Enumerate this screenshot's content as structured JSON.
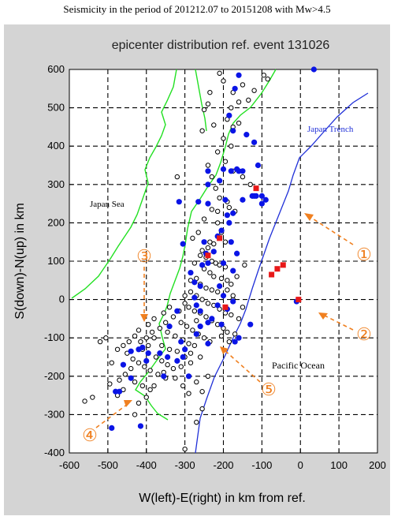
{
  "caption": "Seismicity in the period of 201212.07 to 20151208 with Mw>4.5",
  "chart_data": {
    "type": "scatter",
    "title": "epicenter distribution ref. event 131026",
    "xlabel": "W(left)-E(right) in km from ref.",
    "ylabel": "S(down)-N(up) in km",
    "xlim": [
      -600,
      200
    ],
    "ylim": [
      -400,
      600
    ],
    "xticks": [
      "-600",
      "-500",
      "-400",
      "-300",
      "-200",
      "-100",
      "0",
      "100",
      "200"
    ],
    "yticks": [
      "-400",
      "-300",
      "-200",
      "-100",
      "0",
      "100",
      "200",
      "300",
      "400",
      "500",
      "600"
    ],
    "grid": true,
    "colors": {
      "open": "#000000",
      "blue": "#0a14e6",
      "red": "#e81818",
      "coast": "#22e022",
      "trench": "#2030d8",
      "annot": "#f08020"
    },
    "series": [
      {
        "marker": "open-circle",
        "points": [
          [
            -210,
            590
          ],
          [
            -200,
            570
          ],
          [
            -175,
            540
          ],
          [
            -160,
            515
          ],
          [
            -150,
            560
          ],
          [
            -135,
            520
          ],
          [
            -120,
            545
          ],
          [
            -95,
            585
          ],
          [
            -85,
            575
          ],
          [
            -180,
            500
          ],
          [
            -190,
            470
          ],
          [
            -175,
            450
          ],
          [
            -160,
            460
          ],
          [
            -240,
            510
          ],
          [
            -235,
            540
          ],
          [
            -250,
            495
          ],
          [
            -225,
            455
          ],
          [
            -255,
            440
          ],
          [
            -200,
            420
          ],
          [
            -180,
            400
          ],
          [
            -215,
            385
          ],
          [
            -195,
            360
          ],
          [
            -175,
            335
          ],
          [
            -150,
            320
          ],
          [
            -130,
            300
          ],
          [
            -240,
            350
          ],
          [
            -230,
            320
          ],
          [
            -220,
            290
          ],
          [
            -210,
            265
          ],
          [
            -190,
            255
          ],
          [
            -185,
            240
          ],
          [
            -230,
            235
          ],
          [
            -250,
            210
          ],
          [
            -215,
            200
          ],
          [
            -205,
            175
          ],
          [
            -195,
            150
          ],
          [
            -225,
            145
          ],
          [
            -235,
            150
          ],
          [
            -240,
            135
          ],
          [
            -255,
            128
          ],
          [
            -260,
            115
          ],
          [
            -245,
            110
          ],
          [
            -230,
            100
          ],
          [
            -220,
            95
          ],
          [
            -210,
            90
          ],
          [
            -195,
            85
          ],
          [
            -275,
            95
          ],
          [
            -250,
            80
          ],
          [
            -235,
            70
          ],
          [
            -225,
            60
          ],
          [
            -205,
            55
          ],
          [
            -190,
            50
          ],
          [
            -180,
            40
          ],
          [
            -270,
            55
          ],
          [
            -285,
            50
          ],
          [
            -260,
            40
          ],
          [
            -245,
            30
          ],
          [
            -230,
            25
          ],
          [
            -215,
            20
          ],
          [
            -200,
            10
          ],
          [
            -190,
            25
          ],
          [
            -175,
            0
          ],
          [
            -285,
            20
          ],
          [
            -270,
            10
          ],
          [
            -255,
            0
          ],
          [
            -240,
            -10
          ],
          [
            -225,
            -15
          ],
          [
            -210,
            -25
          ],
          [
            -195,
            -35
          ],
          [
            -180,
            -40
          ],
          [
            -300,
            -10
          ],
          [
            -290,
            -20
          ],
          [
            -275,
            -30
          ],
          [
            -260,
            -35
          ],
          [
            -245,
            -45
          ],
          [
            -230,
            -55
          ],
          [
            -215,
            -65
          ],
          [
            -200,
            -75
          ],
          [
            -190,
            -85
          ],
          [
            -315,
            -30
          ],
          [
            -330,
            -45
          ],
          [
            -310,
            -60
          ],
          [
            -295,
            -70
          ],
          [
            -280,
            -80
          ],
          [
            -265,
            -90
          ],
          [
            -250,
            -100
          ],
          [
            -235,
            -110
          ],
          [
            -340,
            -20
          ],
          [
            -355,
            -35
          ],
          [
            -350,
            -60
          ],
          [
            -365,
            -75
          ],
          [
            -345,
            -85
          ],
          [
            -325,
            -95
          ],
          [
            -305,
            -105
          ],
          [
            -290,
            -115
          ],
          [
            -275,
            -120
          ],
          [
            -380,
            -50
          ],
          [
            -395,
            -65
          ],
          [
            -385,
            -85
          ],
          [
            -400,
            -100
          ],
          [
            -415,
            -110
          ],
          [
            -410,
            -130
          ],
          [
            -395,
            -140
          ],
          [
            -375,
            -150
          ],
          [
            -360,
            -160
          ],
          [
            -345,
            -170
          ],
          [
            -330,
            -180
          ],
          [
            -420,
            -80
          ],
          [
            -430,
            -95
          ],
          [
            -445,
            -110
          ],
          [
            -460,
            -120
          ],
          [
            -475,
            -130
          ],
          [
            -450,
            -140
          ],
          [
            -435,
            -155
          ],
          [
            -420,
            -165
          ],
          [
            -405,
            -175
          ],
          [
            -390,
            -185
          ],
          [
            -370,
            -195
          ],
          [
            -350,
            -205
          ],
          [
            -440,
            -180
          ],
          [
            -455,
            -195
          ],
          [
            -470,
            -210
          ],
          [
            -430,
            -215
          ],
          [
            -410,
            -225
          ],
          [
            -390,
            -235
          ],
          [
            -320,
            -135
          ],
          [
            -300,
            -150
          ],
          [
            -285,
            -165
          ],
          [
            -310,
            -175
          ],
          [
            -325,
            -205
          ],
          [
            -305,
            -225
          ],
          [
            -290,
            -245
          ],
          [
            -380,
            -225
          ],
          [
            -400,
            -255
          ],
          [
            -420,
            -270
          ],
          [
            -430,
            -300
          ],
          [
            -505,
            -100
          ],
          [
            -520,
            -110
          ],
          [
            -490,
            -165
          ],
          [
            -495,
            -220
          ],
          [
            -540,
            -255
          ],
          [
            -560,
            -265
          ],
          [
            -460,
            -235
          ],
          [
            -475,
            -250
          ],
          [
            -300,
            -390
          ],
          [
            -270,
            -320
          ],
          [
            -255,
            -285
          ],
          [
            -240,
            -200
          ],
          [
            -260,
            -150
          ],
          [
            -285,
            -140
          ],
          [
            -170,
            -90
          ],
          [
            -185,
            -110
          ],
          [
            -205,
            -95
          ],
          [
            -160,
            -50
          ],
          [
            -150,
            -20
          ],
          [
            -175,
            10
          ],
          [
            -165,
            60
          ],
          [
            -145,
            90
          ],
          [
            -280,
            160
          ],
          [
            -265,
            175
          ],
          [
            -215,
            230
          ],
          [
            -170,
            230
          ],
          [
            -320,
            320
          ],
          [
            -300,
            10
          ],
          [
            -270,
            -55
          ],
          [
            -340,
            -130
          ],
          [
            -360,
            -120
          ],
          [
            -380,
            -100
          ],
          [
            -395,
            -120
          ],
          [
            -355,
            -190
          ],
          [
            -270,
            -215
          ],
          [
            -255,
            -240
          ]
        ]
      },
      {
        "marker": "blue-dot",
        "points": [
          [
            -160,
            585
          ],
          [
            -170,
            550
          ],
          [
            -185,
            480
          ],
          [
            -175,
            440
          ],
          [
            -140,
            430
          ],
          [
            -120,
            410
          ],
          [
            -110,
            350
          ],
          [
            -240,
            335
          ],
          [
            -200,
            340
          ],
          [
            -180,
            335
          ],
          [
            -160,
            335
          ],
          [
            -210,
            310
          ],
          [
            -195,
            260
          ],
          [
            -150,
            260
          ],
          [
            -100,
            250
          ],
          [
            -240,
            250
          ],
          [
            -265,
            255
          ],
          [
            -240,
            300
          ],
          [
            -175,
            225
          ],
          [
            -190,
            220
          ],
          [
            -185,
            200
          ],
          [
            -205,
            180
          ],
          [
            -215,
            165
          ],
          [
            -225,
            125
          ],
          [
            -245,
            120
          ],
          [
            -250,
            150
          ],
          [
            -165,
            120
          ],
          [
            -200,
            95
          ],
          [
            -285,
            70
          ],
          [
            -275,
            45
          ],
          [
            -260,
            35
          ],
          [
            -210,
            35
          ],
          [
            -200,
            10
          ],
          [
            -190,
            -25
          ],
          [
            -175,
            -5
          ],
          [
            -260,
            -30
          ],
          [
            -240,
            -60
          ],
          [
            -240,
            -115
          ],
          [
            -270,
            -90
          ],
          [
            -300,
            -130
          ],
          [
            -305,
            -150
          ],
          [
            -320,
            -160
          ],
          [
            -345,
            -150
          ],
          [
            -355,
            -200
          ],
          [
            -400,
            -160
          ],
          [
            -395,
            -140
          ],
          [
            -410,
            -125
          ],
          [
            -420,
            -130
          ],
          [
            -460,
            -170
          ],
          [
            -480,
            -240
          ],
          [
            -490,
            -335
          ],
          [
            -415,
            -330
          ],
          [
            -290,
            -200
          ],
          [
            -310,
            -110
          ],
          [
            -260,
            -70
          ],
          [
            -205,
            -65
          ],
          [
            -230,
            -50
          ],
          [
            -160,
            -100
          ],
          [
            -170,
            -110
          ],
          [
            -130,
            -65
          ],
          [
            -320,
            -30
          ],
          [
            -275,
            5
          ],
          [
            -255,
            90
          ],
          [
            -240,
            95
          ],
          [
            -215,
            -15
          ],
          [
            -270,
            -15
          ],
          [
            -10,
            -5
          ],
          [
            -115,
            270
          ],
          [
            -125,
            270
          ],
          [
            -100,
            270
          ],
          [
            -90,
            260
          ],
          [
            -150,
            335
          ],
          [
            -165,
            340
          ],
          [
            -315,
            255
          ],
          [
            -340,
            -70
          ],
          [
            -365,
            -140
          ],
          [
            -440,
            -135
          ],
          [
            -440,
            -205
          ],
          [
            -470,
            -240
          ],
          [
            -175,
            75
          ],
          [
            -120,
            270
          ],
          [
            -305,
            145
          ],
          [
            -180,
            150
          ],
          [
            35,
            600
          ]
        ]
      },
      {
        "marker": "red-square",
        "points": [
          [
            -115,
            290
          ],
          [
            -75,
            65
          ],
          [
            -60,
            80
          ],
          [
            -45,
            90
          ],
          [
            -5,
            0
          ],
          [
            -195,
            -20
          ],
          [
            -240,
            115
          ],
          [
            -210,
            160
          ]
        ]
      }
    ],
    "annotations": {
      "sea": "Japan Sea",
      "trench": "Japan Trench",
      "ocean": "Pacific Ocean",
      "num1": "①",
      "num2": "②",
      "num3": "③",
      "num4": "④",
      "num5": "⑤"
    }
  }
}
